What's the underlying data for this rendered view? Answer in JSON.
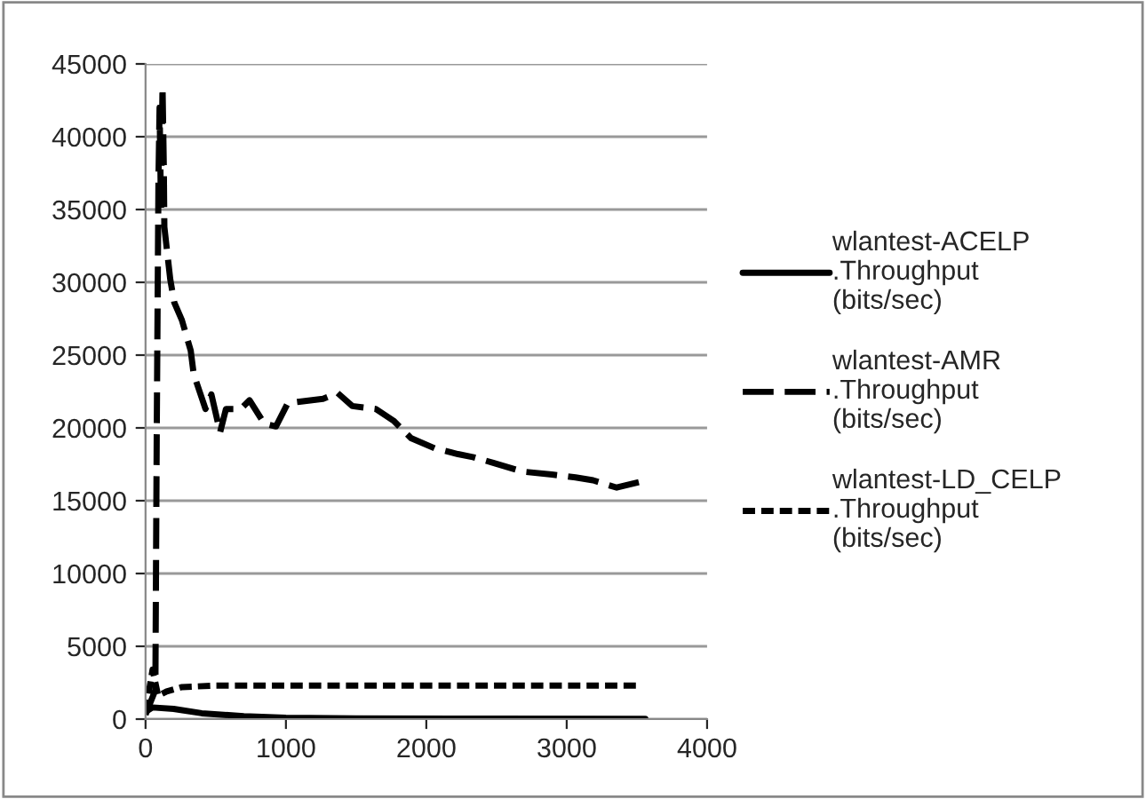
{
  "chart_data": {
    "type": "line",
    "series": [
      {
        "name": "wlantest-ACELP\n.Throughput\n(bits/sec)",
        "color": "#000000",
        "line_style": "solid",
        "x": [
          0,
          50,
          200,
          400,
          700,
          1000,
          1500,
          2500,
          3560
        ],
        "values": [
          500,
          800,
          700,
          400,
          200,
          100,
          50,
          30,
          20
        ]
      },
      {
        "name": "wlantest-AMR\n.Throughput\n(bits/sec)",
        "color": "#000000",
        "line_style": "dashed",
        "x": [
          0,
          70,
          80,
          92,
          100,
          110,
          121,
          130,
          134,
          176,
          205,
          259,
          322,
          343,
          427,
          469,
          531,
          573,
          678,
          741,
          845,
          929,
          1013,
          1096,
          1264,
          1368,
          1473,
          1640,
          1766,
          1891,
          2059,
          2226,
          2331,
          2477,
          2686,
          2895,
          3063,
          3188,
          3356,
          3565
        ],
        "values": [
          300,
          2000,
          20000,
          37000,
          42000,
          35000,
          43400,
          38000,
          33800,
          30200,
          28600,
          27400,
          25300,
          23700,
          21300,
          22300,
          19700,
          21300,
          21300,
          21900,
          20300,
          20100,
          21700,
          21800,
          22000,
          22400,
          21500,
          21300,
          20500,
          19300,
          18600,
          18200,
          18000,
          17600,
          17000,
          16800,
          16600,
          16400,
          15900,
          16400
        ]
      },
      {
        "name": "wlantest-LD_CELP\n.Throughput\n(bits/sec)",
        "color": "#000000",
        "line_style": "dotted",
        "x": [
          0,
          50,
          90,
          150,
          260,
          500,
          1000,
          2000,
          3500
        ],
        "values": [
          500,
          3400,
          1600,
          1900,
          2200,
          2300,
          2300,
          2300,
          2300
        ]
      }
    ],
    "xlim": [
      0,
      4000
    ],
    "xticks": [
      0,
      1000,
      2000,
      3000,
      4000
    ],
    "ylim": [
      0,
      45000
    ],
    "yticks": [
      0,
      5000,
      10000,
      15000,
      20000,
      25000,
      30000,
      35000,
      40000,
      45000
    ],
    "grid": "y",
    "legend": "right",
    "marker": "none"
  }
}
